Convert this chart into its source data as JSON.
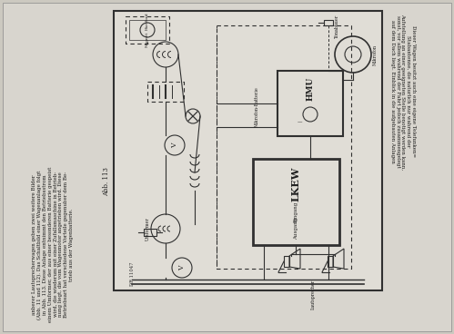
{
  "bg_color": "#d0cdc6",
  "page_bg": "#ccc9c0",
  "border_color": "#404040",
  "text_color": "#202020",
  "diagram_bg": "#e2dfd8",
  "caption": "Abb. 113",
  "dr_number": "DR 11047",
  "left_text_lines": [
    "anberer Lautsprecherwagen geben zwei weitere Bilder",
    "(Abb. 11 und 112). Das Schaltbild einer Wagenanlage folgt",
    "in Abb. 113. Diese Anlage entnimmt den Betriebsstrom",
    "einem Umformer, der aus einer besonderen Batterie gespeist",
    "wird, die wiederum mit einer Zufallsmaschine in Betrieb-",
    "nung liegt, die vom Wagenmotor angetrieben wird. Diese",
    "Betriebsart hat verschiedene Vorteile gegenuber dem Be-",
    "trieb aus der Wagenbatterie."
  ],
  "right_text_lines": [
    "Dieser Wagen besitzt auch eine eigene Telefunken=",
    "Stabantenne, die naturlich nur wahrend der",
    "Aufstellung an einer geeigneten Stelle benotigt werden kann,",
    "sonst, vor allem wahrend der Fahrt jedoch zusammengelegt",
    "auf dem Dach liegt. Einblick in die aufgebauten Anlagen"
  ]
}
